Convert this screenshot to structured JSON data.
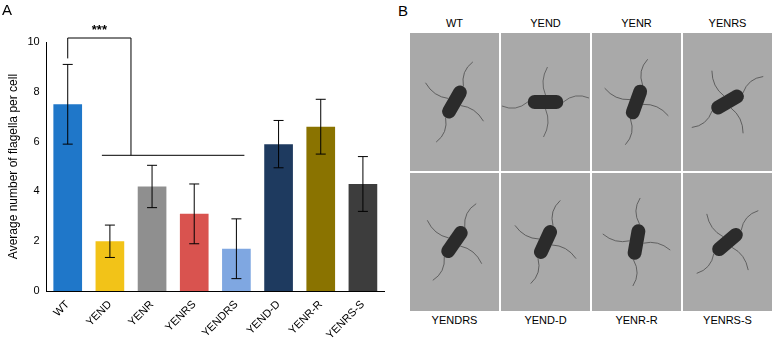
{
  "chart_data": {
    "type": "bar",
    "title": "A",
    "y_label": "Average number of flagella per cell",
    "categories": [
      "WT",
      "YEND",
      "YENR",
      "YENRS",
      "YENDRS",
      "YEND-D",
      "YENR-R",
      "YENRS-S"
    ],
    "values": [
      7.5,
      2.0,
      4.2,
      3.1,
      1.7,
      5.9,
      6.6,
      4.3
    ],
    "errors": [
      1.6,
      0.65,
      0.85,
      1.2,
      1.2,
      0.95,
      1.1,
      1.1
    ],
    "colors": [
      "#1f77c9",
      "#f2c318",
      "#8f8f8f",
      "#d9534f",
      "#7fa7e1",
      "#1e3a5f",
      "#8a7300",
      "#3d3d3d"
    ],
    "ylim": [
      0,
      10
    ],
    "yticks": [
      0,
      2,
      4,
      6,
      8,
      10
    ],
    "grid": false,
    "annotations": [
      {
        "text": "***",
        "reference": "WT",
        "group": [
          "YEND",
          "YENR",
          "YENRS",
          "YENDRS"
        ]
      }
    ]
  },
  "image_panel": {
    "label": "B",
    "top_labels": [
      "WT",
      "YEND",
      "YENR",
      "YENRS"
    ],
    "bottom_labels": [
      "YENDRS",
      "YEND-D",
      "YENR-R",
      "YENRS-S"
    ]
  }
}
